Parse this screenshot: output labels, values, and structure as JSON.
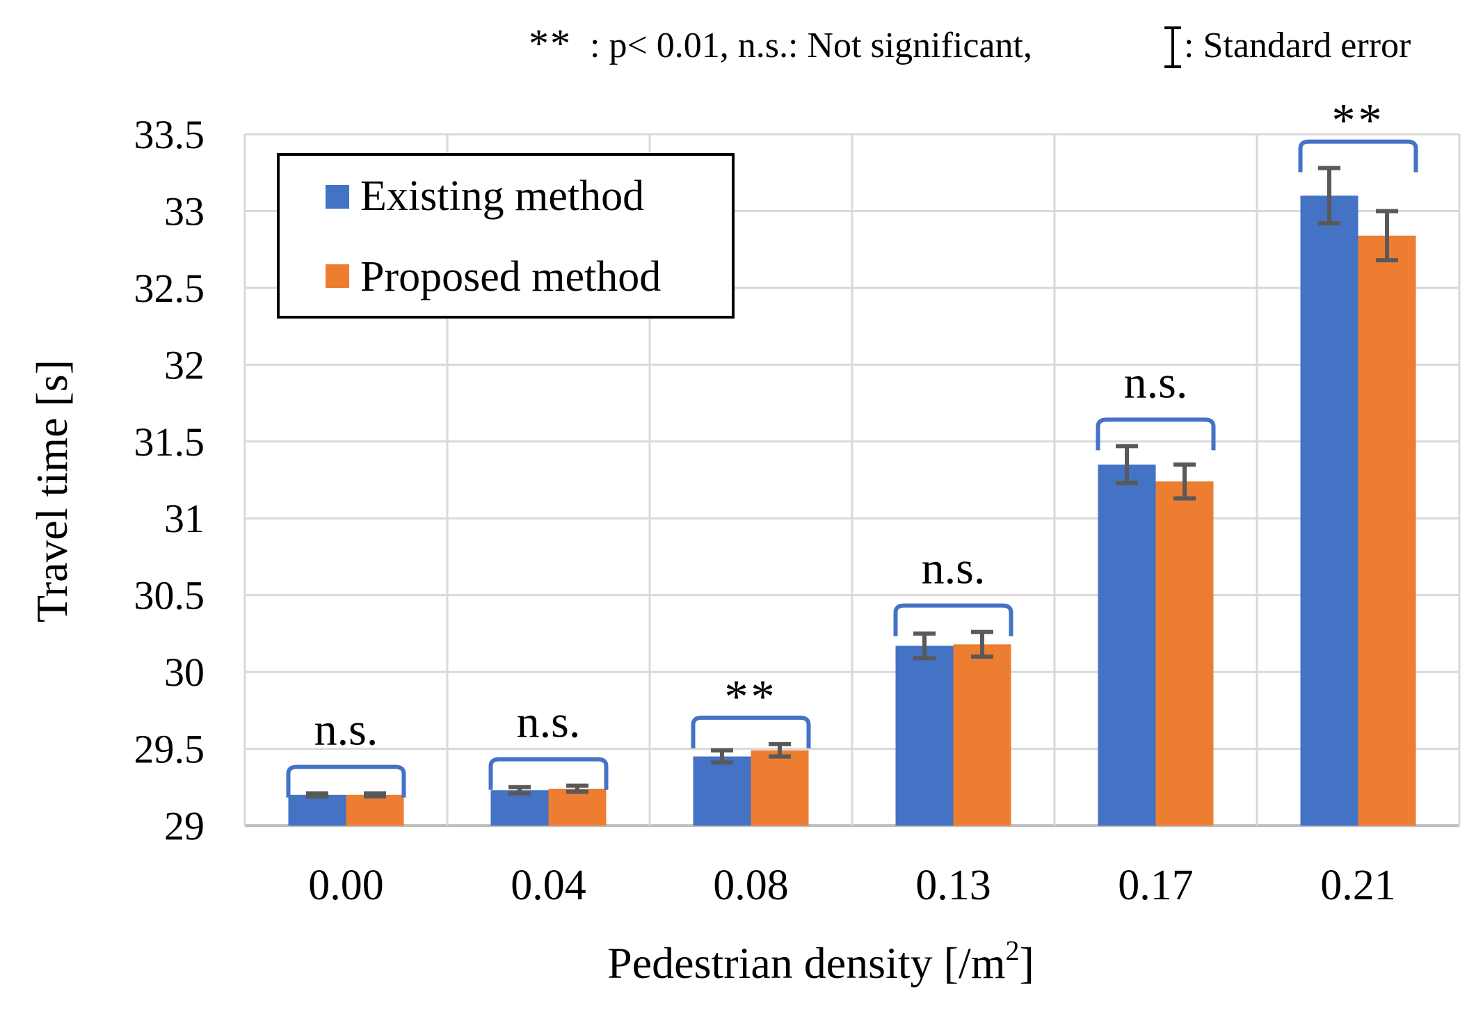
{
  "chart_data": {
    "type": "bar",
    "title": "",
    "xlabel": "Pedestrian density [/m",
    "xlabel_sup": "2",
    "xlabel_close": "]",
    "ylabel": "Travel time [s]",
    "ylim": [
      29,
      33.5
    ],
    "yticks": [
      "29",
      "29.5",
      "30",
      "30.5",
      "31",
      "31.5",
      "32",
      "32.5",
      "33",
      "33.5"
    ],
    "categories": [
      "0.00",
      "0.04",
      "0.08",
      "0.13",
      "0.17",
      "0.21"
    ],
    "series": [
      {
        "name": "Existing method",
        "color": "#4472C4",
        "values": [
          29.2,
          29.23,
          29.45,
          30.17,
          31.35,
          33.1
        ],
        "errors": [
          0.01,
          0.02,
          0.04,
          0.08,
          0.12,
          0.18
        ]
      },
      {
        "name": "Proposed method",
        "color": "#ED7D31",
        "values": [
          29.2,
          29.24,
          29.49,
          30.18,
          31.24,
          32.84
        ],
        "errors": [
          0.01,
          0.02,
          0.04,
          0.08,
          0.11,
          0.16
        ]
      }
    ],
    "significance": [
      "n.s.",
      "n.s.",
      "**",
      "n.s.",
      "n.s.",
      "**"
    ],
    "legend_position": "top-left",
    "grid": true,
    "annotation": {
      "stars": "**",
      "sig_text": ": p< 0.01,  n.s.: Not significant,",
      "err_text": ": Standard error"
    },
    "colors": {
      "bracket": "#4472C4",
      "error_bar": "#595959",
      "grid": "#D9D9D9",
      "axis": "#BFBFBF"
    }
  }
}
